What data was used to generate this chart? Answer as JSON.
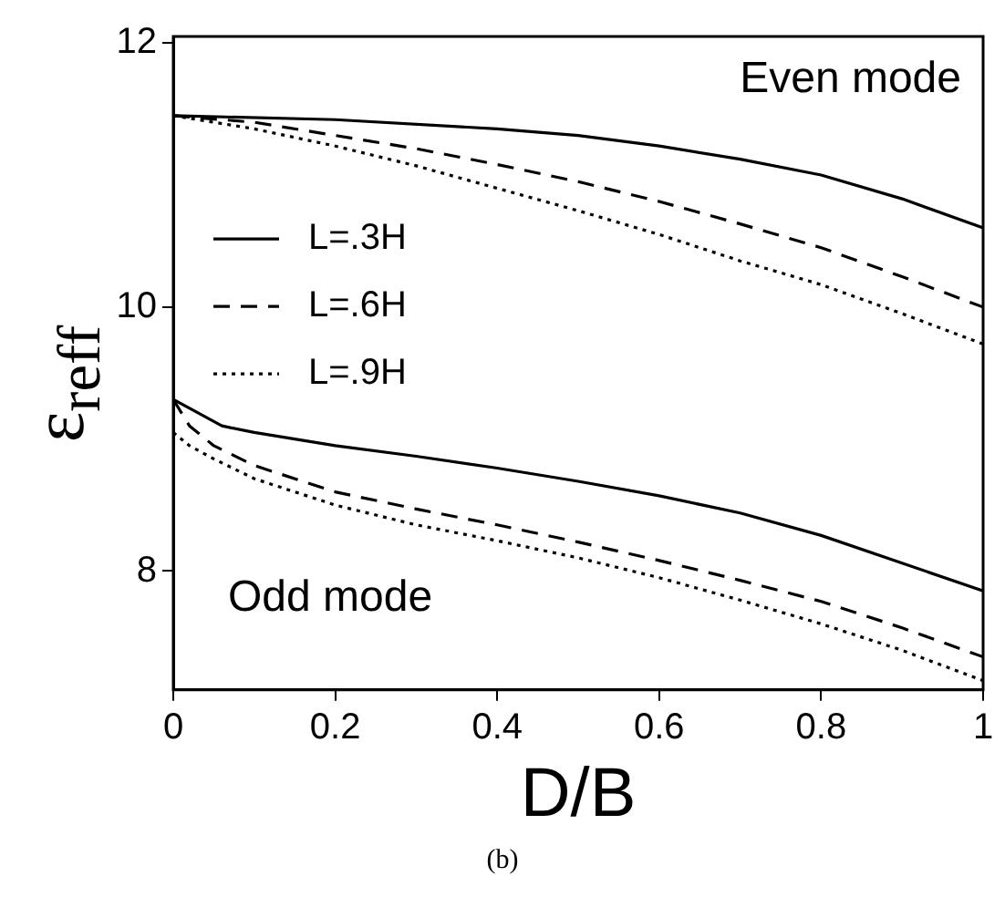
{
  "chart_data": {
    "type": "line",
    "xlabel": "D/B",
    "ylabel": "ε$_{reff}$",
    "annotations": [
      "Even mode",
      "Odd mode",
      "(b)"
    ],
    "xlim": [
      0,
      1
    ],
    "xticks": [
      0,
      0.2,
      0.4,
      0.6,
      0.8,
      1
    ],
    "ylim": [
      7.1,
      12.05
    ],
    "yticks": [
      8,
      10,
      12
    ],
    "legend": "top left",
    "marker": "none",
    "series": [
      {
        "name": "L=.3H",
        "color": "#000000",
        "line_style": "solid",
        "x": [
          0,
          0.2,
          0.4,
          0.5,
          0.6,
          0.7,
          0.8,
          0.9,
          1
        ],
        "values": [
          11.45,
          11.42,
          11.35,
          11.3,
          11.22,
          11.12,
          11.0,
          10.82,
          10.6
        ]
      },
      {
        "name": "L=.6H",
        "color": "#000000",
        "line_style": "dashed",
        "x": [
          0,
          0.1,
          0.2,
          0.3,
          0.4,
          0.5,
          0.6,
          0.7,
          0.8,
          0.9,
          1
        ],
        "values": [
          11.45,
          11.4,
          11.3,
          11.2,
          11.08,
          10.95,
          10.8,
          10.63,
          10.45,
          10.23,
          10.0
        ]
      },
      {
        "name": "L=.9H",
        "color": "#000000",
        "line_style": "dotted",
        "x": [
          0,
          0.1,
          0.2,
          0.3,
          0.4,
          0.5,
          0.6,
          0.7,
          0.8,
          0.9,
          1
        ],
        "values": [
          11.45,
          11.35,
          11.22,
          11.07,
          10.9,
          10.73,
          10.55,
          10.35,
          10.17,
          9.95,
          9.72
        ]
      },
      {
        "color": "#000000",
        "line_style": "solid",
        "x": [
          0,
          0.03,
          0.06,
          0.1,
          0.2,
          0.3,
          0.4,
          0.5,
          0.6,
          0.7,
          0.8,
          0.9,
          1
        ],
        "values": [
          9.3,
          9.2,
          9.1,
          9.05,
          8.95,
          8.87,
          8.78,
          8.68,
          8.57,
          8.44,
          8.27,
          8.06,
          7.85
        ]
      },
      {
        "color": "#000000",
        "line_style": "dashed",
        "x": [
          0,
          0.02,
          0.05,
          0.1,
          0.2,
          0.3,
          0.4,
          0.5,
          0.6,
          0.7,
          0.8,
          0.9,
          1
        ],
        "values": [
          9.3,
          9.1,
          8.95,
          8.8,
          8.6,
          8.47,
          8.35,
          8.22,
          8.08,
          7.93,
          7.77,
          7.57,
          7.35
        ]
      },
      {
        "color": "#000000",
        "line_style": "dotted",
        "x": [
          0,
          0.02,
          0.05,
          0.1,
          0.2,
          0.3,
          0.4,
          0.5,
          0.6,
          0.7,
          0.8,
          0.9,
          1
        ],
        "values": [
          9.05,
          8.95,
          8.85,
          8.7,
          8.5,
          8.35,
          8.23,
          8.1,
          7.95,
          7.78,
          7.6,
          7.4,
          7.17
        ]
      }
    ]
  }
}
